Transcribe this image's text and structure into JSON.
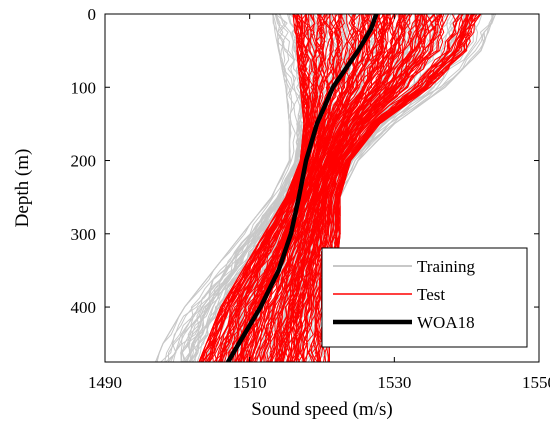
{
  "chart_data": {
    "type": "line",
    "title": "",
    "xlabel": "Sound speed (m/s)",
    "ylabel": "Depth (m)",
    "xlim": [
      1490,
      1550
    ],
    "ylim": [
      0,
      475
    ],
    "y_inverted": true,
    "xticks": [
      "1490",
      "1510",
      "1530",
      "1550"
    ],
    "yticks": [
      "0",
      "100",
      "200",
      "300",
      "400"
    ],
    "grid": false,
    "legend_position": "bottom-right",
    "legend": [
      "Training",
      "Test",
      "WOA18"
    ],
    "colors": {
      "training": "#c8c8c8",
      "test": "#ff0000",
      "woa18": "#000000"
    },
    "series": [
      {
        "name": "Training",
        "envelope": {
          "depth": [
            0,
            50,
            100,
            150,
            200,
            250,
            300,
            350,
            400,
            450,
            475
          ],
          "speed_min": [
            1513,
            1514,
            1515,
            1515.5,
            1515.5,
            1513,
            1509,
            1505,
            1501,
            1498,
            1497
          ],
          "speed_max": [
            1544,
            1542,
            1537,
            1530,
            1525,
            1522.5,
            1522.5,
            1522,
            1521.5,
            1521,
            1521
          ]
        }
      },
      {
        "name": "Test",
        "envelope": {
          "depth": [
            0,
            50,
            100,
            150,
            200,
            250,
            300,
            350,
            400,
            450,
            475
          ],
          "speed_min": [
            1516,
            1516.5,
            1517,
            1517.5,
            1517,
            1515,
            1512,
            1509,
            1506,
            1504,
            1503
          ],
          "speed_max": [
            1542,
            1540,
            1535,
            1528,
            1524,
            1522.5,
            1522.5,
            1522,
            1521.5,
            1521,
            1521
          ]
        }
      },
      {
        "name": "WOA18",
        "depth": [
          0,
          20,
          50,
          100,
          150,
          200,
          250,
          300,
          350,
          400,
          450,
          475
        ],
        "speed": [
          1527.5,
          1526.8,
          1525,
          1521.5,
          1519.3,
          1517.8,
          1516.8,
          1515.7,
          1514,
          1511.5,
          1508.5,
          1507
        ]
      }
    ]
  }
}
